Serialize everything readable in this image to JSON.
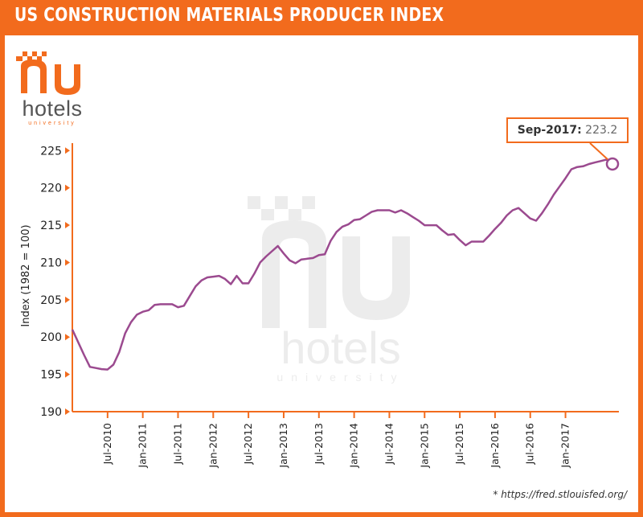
{
  "title": "US CONSTRUCTION MATERIALS PRODUCER INDEX",
  "logo": {
    "word": "hotels",
    "sub": "university"
  },
  "source": "* https://fred.stlouisfed.org/",
  "colors": {
    "brand": "#F26B1D",
    "line": "#9B4A8F",
    "watermark": "#ececec"
  },
  "callout": {
    "label": "Sep-2017:",
    "value": "223.2"
  },
  "chart_data": {
    "type": "line",
    "title": "US CONSTRUCTION MATERIALS PRODUCER INDEX",
    "xlabel": "",
    "ylabel": "Index (1982 = 100)",
    "ylim": [
      190,
      226
    ],
    "yticks": [
      190,
      195,
      200,
      205,
      210,
      215,
      220,
      225
    ],
    "xtick_labels": [
      "Jul-2010",
      "Jan-2011",
      "Jul-2011",
      "Jan-2012",
      "Jul-2012",
      "Jan-2013",
      "Jul-2013",
      "Jan-2014",
      "Jul-2014",
      "Jan-2015",
      "Jul-2015",
      "Jan-2016",
      "Jul-2016",
      "Jan-2017"
    ],
    "xtick_dates": [
      "2010-07",
      "2011-01",
      "2011-07",
      "2012-01",
      "2012-07",
      "2013-01",
      "2013-07",
      "2014-01",
      "2014-07",
      "2015-01",
      "2015-07",
      "2016-01",
      "2016-07",
      "2017-01"
    ],
    "grid": false,
    "series": [
      {
        "x": [
          "2010-01",
          "2010-02",
          "2010-03",
          "2010-04",
          "2010-05",
          "2010-06",
          "2010-07",
          "2010-08",
          "2010-09",
          "2010-10",
          "2010-11",
          "2010-12",
          "2011-01",
          "2011-02",
          "2011-03",
          "2011-04",
          "2011-05",
          "2011-06",
          "2011-07",
          "2011-08",
          "2011-09",
          "2011-10",
          "2011-11",
          "2011-12",
          "2012-01",
          "2012-02",
          "2012-03",
          "2012-04",
          "2012-05",
          "2012-06",
          "2012-07",
          "2012-08",
          "2012-09",
          "2012-10",
          "2012-11",
          "2012-12",
          "2013-01",
          "2013-02",
          "2013-03",
          "2013-04",
          "2013-05",
          "2013-06",
          "2013-07",
          "2013-08",
          "2013-09",
          "2013-10",
          "2013-11",
          "2013-12",
          "2014-01",
          "2014-02",
          "2014-03",
          "2014-04",
          "2014-05",
          "2014-06",
          "2014-07",
          "2014-08",
          "2014-09",
          "2014-10",
          "2014-11",
          "2014-12",
          "2015-01",
          "2015-02",
          "2015-03",
          "2015-04",
          "2015-05",
          "2015-06",
          "2015-07",
          "2015-08",
          "2015-09",
          "2015-10",
          "2015-11",
          "2015-12",
          "2016-01",
          "2016-02",
          "2016-03",
          "2016-04",
          "2016-05",
          "2016-06",
          "2016-07",
          "2016-08",
          "2016-09",
          "2016-10",
          "2016-11",
          "2016-12",
          "2017-01",
          "2017-02",
          "2017-03",
          "2017-04",
          "2017-05",
          "2017-06",
          "2017-07",
          "2017-08",
          "2017-09"
        ],
        "y": [
          201,
          199.3,
          197.6,
          196,
          195.85,
          195.7,
          195.65,
          196.3,
          198,
          200.5,
          202,
          203,
          203.4,
          203.6,
          204.3,
          204.4,
          204.4,
          204.4,
          204,
          204.2,
          205.5,
          206.8,
          207.6,
          208,
          208.1,
          208.2,
          207.8,
          207.1,
          208.2,
          207.2,
          207.2,
          208.5,
          210,
          210.8,
          211.5,
          212.2,
          211.2,
          210.3,
          209.9,
          210.4,
          210.5,
          210.6,
          211,
          211.1,
          212.9,
          214.1,
          214.8,
          215.1,
          215.7,
          215.8,
          216.3,
          216.8,
          217,
          217,
          217,
          216.7,
          217,
          216.6,
          216.1,
          215.6,
          215,
          215,
          215,
          214.3,
          213.7,
          213.8,
          213,
          212.3,
          212.8,
          212.8,
          212.8,
          213.6,
          214.5,
          215.3,
          216.3,
          217,
          217.3,
          216.6,
          215.9,
          215.6,
          216.6,
          217.8,
          219.1,
          220.2,
          221.3,
          222.5,
          222.8,
          222.9,
          223.2,
          223.4,
          223.6,
          223.8,
          223.2
        ]
      }
    ],
    "highlight": {
      "x": "2017-09",
      "y": 223.2
    }
  }
}
